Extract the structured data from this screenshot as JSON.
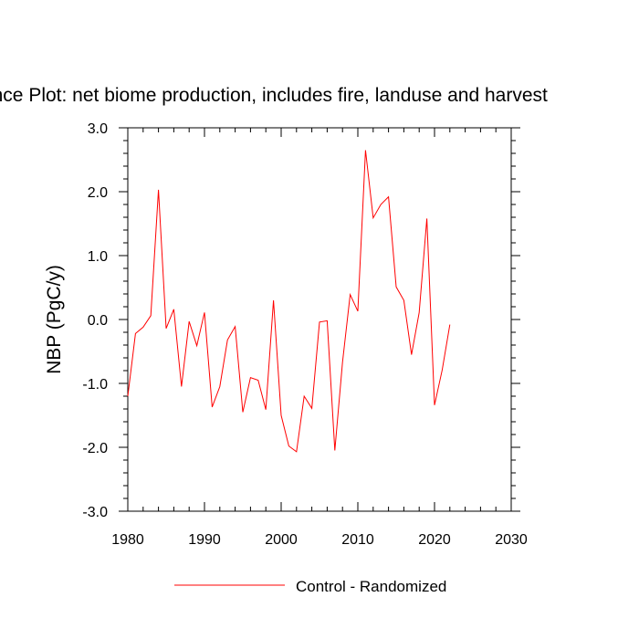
{
  "chart_data": {
    "type": "line",
    "title": "Difference Plot: net biome production, includes fire, landuse and harvest",
    "xlabel": "",
    "ylabel": "NBP  (PgC/y)",
    "xlim": [
      1980,
      2030
    ],
    "ylim": [
      -3.0,
      3.0
    ],
    "xticks": [
      1980,
      1990,
      2000,
      2010,
      2020,
      2030
    ],
    "xtick_labels": [
      "1980",
      "1990",
      "2000",
      "2010",
      "2020",
      "2030"
    ],
    "yticks": [
      -3.0,
      -2.0,
      -1.0,
      0.0,
      1.0,
      2.0,
      3.0
    ],
    "ytick_labels": [
      "-3.0",
      "-2.0",
      "-1.0",
      "0.0",
      "1.0",
      "2.0",
      "3.0"
    ],
    "grid": false,
    "legend_position": "bottom-center",
    "series": [
      {
        "name": "Control - Randomized",
        "color": "#ff0000",
        "x": [
          1980,
          1981,
          1982,
          1983,
          1984,
          1985,
          1986,
          1987,
          1988,
          1989,
          1990,
          1991,
          1992,
          1993,
          1994,
          1995,
          1996,
          1997,
          1998,
          1999,
          2000,
          2001,
          2002,
          2003,
          2004,
          2005,
          2006,
          2007,
          2008,
          2009,
          2010,
          2011,
          2012,
          2013,
          2014,
          2015,
          2016,
          2017,
          2018,
          2019,
          2020,
          2021,
          2022
        ],
        "y": [
          -1.2,
          -0.22,
          -0.12,
          0.06,
          2.03,
          -0.14,
          0.16,
          -1.05,
          -0.03,
          -0.41,
          0.11,
          -1.37,
          -1.05,
          -0.32,
          -0.11,
          -1.45,
          -0.91,
          -0.95,
          -1.41,
          0.3,
          -1.5,
          -1.98,
          -2.07,
          -1.2,
          -1.39,
          -0.04,
          -0.02,
          -2.05,
          -0.67,
          0.39,
          0.13,
          2.65,
          1.59,
          1.8,
          1.92,
          0.51,
          0.3,
          -0.55,
          0.11,
          1.58,
          -1.34,
          -0.79,
          -0.08
        ]
      }
    ]
  }
}
